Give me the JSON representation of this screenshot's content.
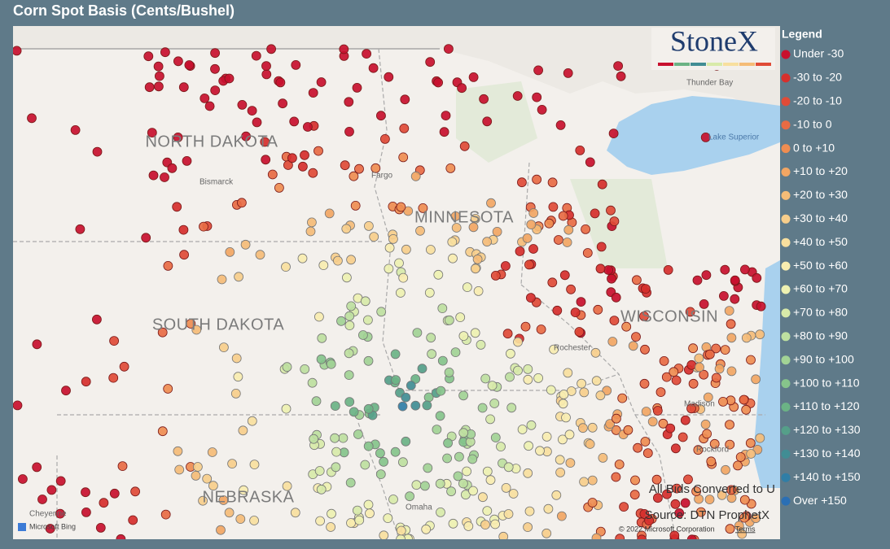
{
  "title": "Corn Spot Basis (Cents/Bushel)",
  "logo": "StoneX",
  "legend": {
    "title": "Legend",
    "items": [
      {
        "label": "Under -30",
        "color": "#c8102e"
      },
      {
        "label": "-30 to -20",
        "color": "#d62f2c"
      },
      {
        "label": "-20 to -10",
        "color": "#e04b37"
      },
      {
        "label": "-10 to 0",
        "color": "#e86b44"
      },
      {
        "label": "0 to +10",
        "color": "#ef8d51"
      },
      {
        "label": "+10 to +20",
        "color": "#f2a663"
      },
      {
        "label": "+20 to +30",
        "color": "#f5bc77"
      },
      {
        "label": "+30 to +40",
        "color": "#f7ce8b"
      },
      {
        "label": "+40 to +50",
        "color": "#f8df9e"
      },
      {
        "label": "+50 to +60",
        "color": "#f8edb0"
      },
      {
        "label": "+60 to +70",
        "color": "#eef1b1"
      },
      {
        "label": "+70 to +80",
        "color": "#d8eaa9"
      },
      {
        "label": "+80 to +90",
        "color": "#bee0a0"
      },
      {
        "label": "+90 to +100",
        "color": "#a2d395"
      },
      {
        "label": "+100 to +110",
        "color": "#86c48b"
      },
      {
        "label": "+110 to +120",
        "color": "#6bb385"
      },
      {
        "label": "+120 to +130",
        "color": "#559f89"
      },
      {
        "label": "+130 to +140",
        "color": "#418d94"
      },
      {
        "label": "+140 to +150",
        "color": "#307ea6"
      },
      {
        "label": "Over +150",
        "color": "#2a6fb5"
      }
    ]
  },
  "map_labels": {
    "states": [
      "NORTH DAKOTA",
      "MINNESOTA",
      "SOUTH DAKOTA",
      "WISCONSIN",
      "NEBRASKA"
    ],
    "cities": [
      "Bismarck",
      "Fargo",
      "Thunder Bay",
      "Rochester",
      "Madison",
      "Rockford",
      "Omaha",
      "Cheyenne"
    ],
    "lakes": [
      "Lake Superior"
    ]
  },
  "annotations": {
    "conversion": "All Bids Converted to U",
    "source": "Source: DTN ProphetX"
  },
  "attribution": {
    "provider": "Microsoft Bing",
    "copyright": "© 2022 Microsoft Corporation",
    "terms": "Terms"
  }
}
